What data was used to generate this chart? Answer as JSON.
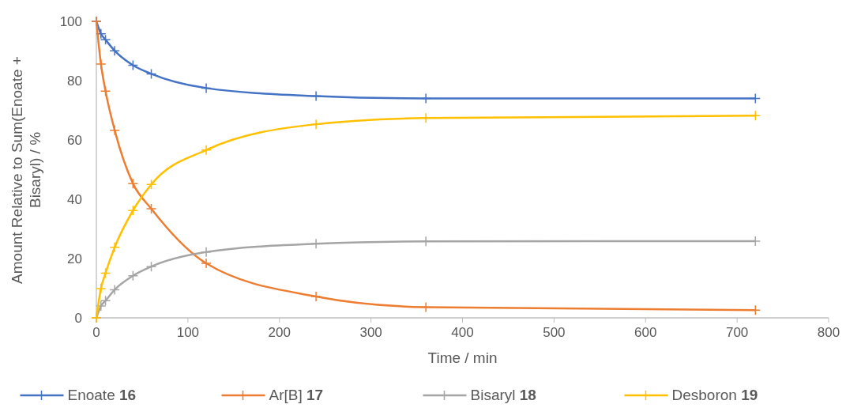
{
  "chart_data": {
    "type": "line",
    "xlabel": "Time / min",
    "ylabel": "Amount Relative to Sum(Enoate + Bisaryl) / %",
    "x": [
      0,
      5,
      10,
      20,
      40,
      60,
      120,
      240,
      360,
      720
    ],
    "series": [
      {
        "name": "Enoate 16",
        "color": "#4472c4",
        "values": [
          100,
          95.8,
          93.8,
          90.1,
          85.2,
          82.3,
          77.5,
          74.8,
          74.0,
          74.0
        ]
      },
      {
        "name": "Ar[B] 17",
        "color": "#ed7d31",
        "values": [
          100,
          85.6,
          76.5,
          63.3,
          45.3,
          36.8,
          18.4,
          7.2,
          3.6,
          2.6
        ]
      },
      {
        "name": "Bisaryl 18",
        "color": "#a5a5a5",
        "values": [
          0,
          4.0,
          5.8,
          9.5,
          14.2,
          17.3,
          22.2,
          25.0,
          25.8,
          25.9
        ]
      },
      {
        "name": "Desboron 19",
        "color": "#ffc000",
        "values": [
          0,
          9.9,
          15.1,
          23.8,
          36.2,
          45.0,
          56.6,
          65.3,
          67.4,
          68.2
        ]
      }
    ],
    "xlim": [
      0,
      800
    ],
    "xticks": [
      0,
      100,
      200,
      300,
      400,
      500,
      600,
      700,
      800
    ],
    "ylim": [
      0,
      100
    ],
    "yticks": [
      0,
      20,
      40,
      60,
      80,
      100
    ],
    "grid": false,
    "legend": "bottom",
    "marker": "cross",
    "line_style": "solid"
  }
}
